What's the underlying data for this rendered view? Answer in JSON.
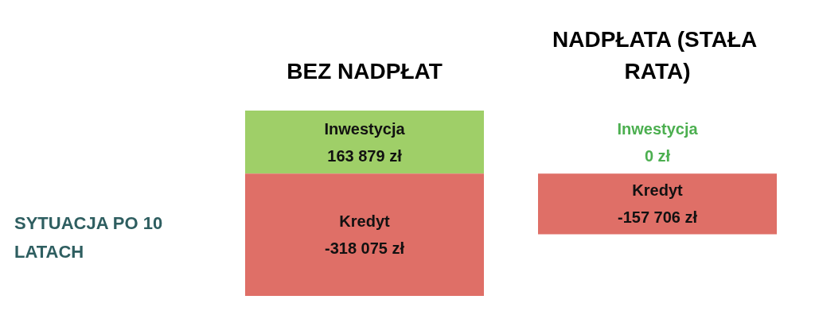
{
  "chart_data": {
    "type": "bar",
    "stacked": true,
    "categories": [
      "BEZ NADPŁAT",
      "NADPŁATA (STAŁA RATA)"
    ],
    "series": [
      {
        "name": "Inwestycja",
        "color": "#9fcf68",
        "values": [
          163879,
          0
        ],
        "value_labels": [
          "163 879 zł",
          "0 zł"
        ]
      },
      {
        "name": "Kredyt",
        "color": "#df6f67",
        "values": [
          -318075,
          -157706
        ],
        "value_labels": [
          "-318 075 zł",
          "-157 706 zł"
        ]
      }
    ],
    "annotations": [
      "SYTUACJA PO 10 LATACH"
    ],
    "legend": false,
    "grid": false
  }
}
